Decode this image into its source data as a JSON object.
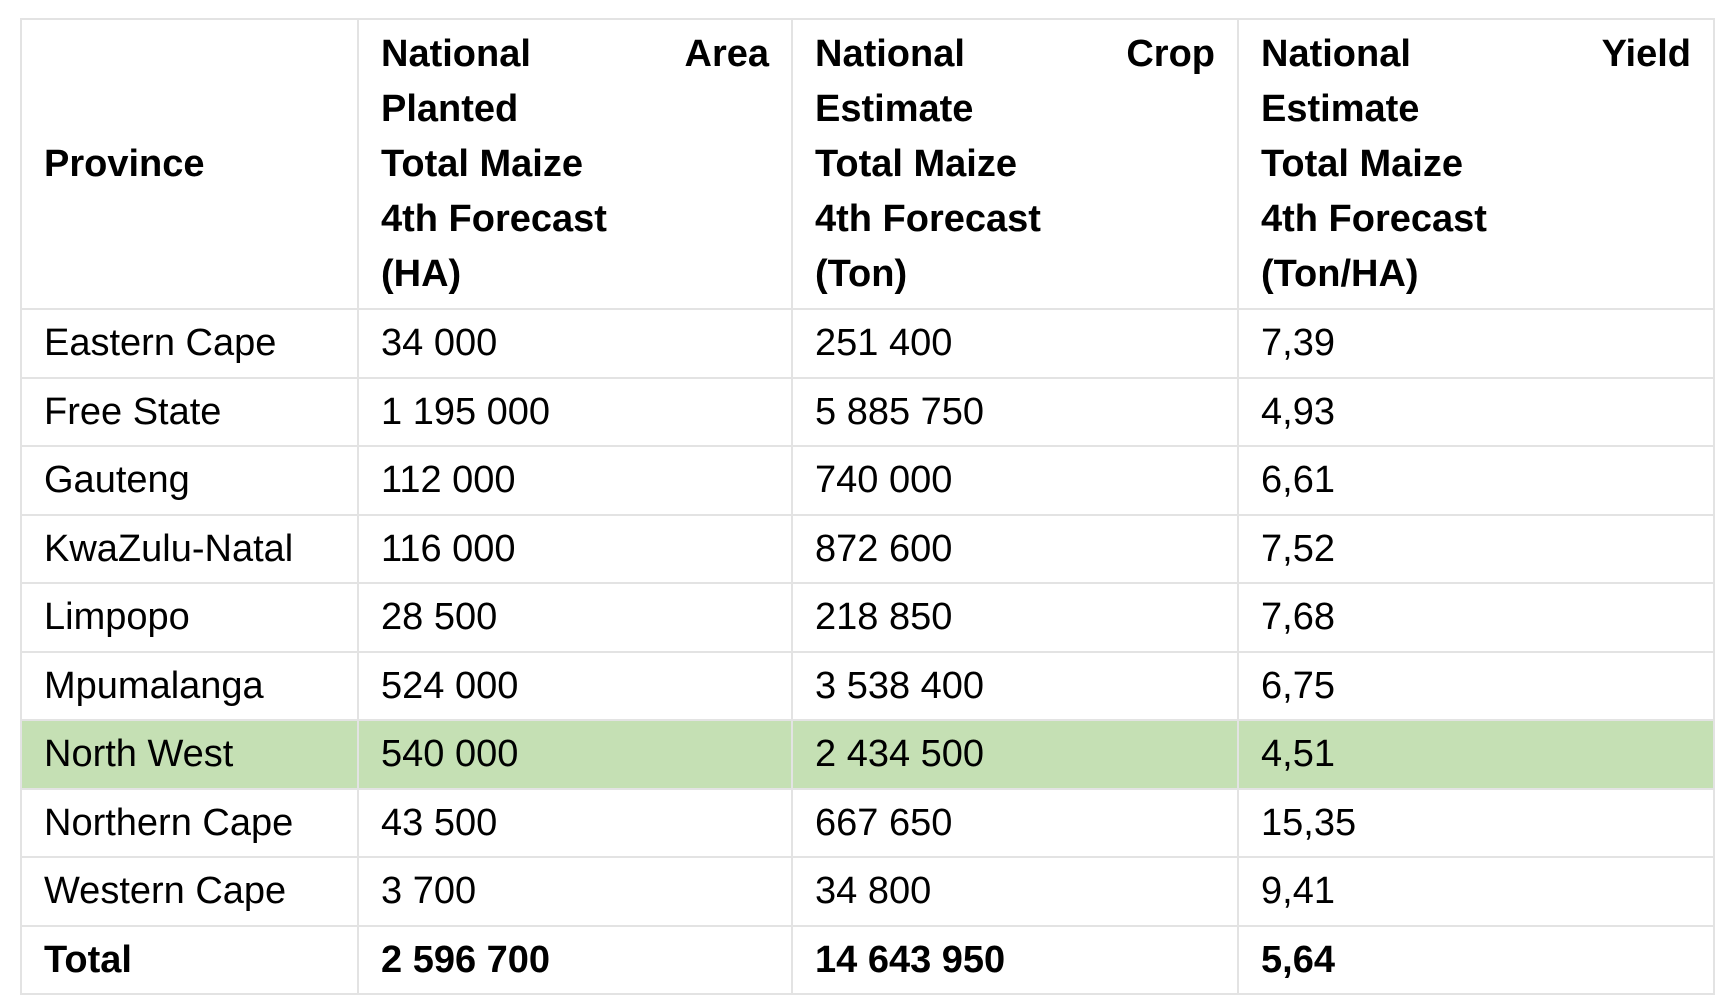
{
  "table": {
    "headers": {
      "province": "Province",
      "area": {
        "line1_left": "National",
        "line1_right": "Area",
        "line2": "Planted",
        "line3": "Total Maize",
        "line4": "4th Forecast",
        "line5": "(HA)"
      },
      "crop": {
        "line1_left": "National",
        "line1_right": "Crop",
        "line2": "Estimate",
        "line3": "Total Maize",
        "line4": "4th Forecast",
        "line5": "(Ton)"
      },
      "yield": {
        "line1_left": "National",
        "line1_right": "Yield",
        "line2": "Estimate",
        "line3": "Total Maize",
        "line4": "4th Forecast",
        "line5": "(Ton/HA)"
      }
    },
    "rows": [
      {
        "province": "Eastern Cape",
        "area": "34 000",
        "crop": "251 400",
        "yield": "7,39"
      },
      {
        "province": "Free State",
        "area": "1 195 000",
        "crop": "5 885 750",
        "yield": "4,93"
      },
      {
        "province": "Gauteng",
        "area": "112 000",
        "crop": "740 000",
        "yield": "6,61"
      },
      {
        "province": "KwaZulu-Natal",
        "area": "116 000",
        "crop": "872 600",
        "yield": "7,52"
      },
      {
        "province": "Limpopo",
        "area": "28 500",
        "crop": "218 850",
        "yield": "7,68"
      },
      {
        "province": "Mpumalanga",
        "area": "524 000",
        "crop": "3 538 400",
        "yield": "6,75"
      },
      {
        "province": "North West",
        "area": "540 000",
        "crop": "2 434 500",
        "yield": "4,51"
      },
      {
        "province": "Northern Cape",
        "area": "43 500",
        "crop": "667 650",
        "yield": "15,35"
      },
      {
        "province": "Western Cape",
        "area": "3 700",
        "crop": "34 800",
        "yield": "9,41"
      }
    ],
    "total": {
      "province": "Total",
      "area": "2 596 700",
      "crop": "14 643 950",
      "yield": "5,64"
    },
    "highlight_row": "North West",
    "highlight_color": "#c5e0b4",
    "border_color": "#e3e3e3"
  }
}
